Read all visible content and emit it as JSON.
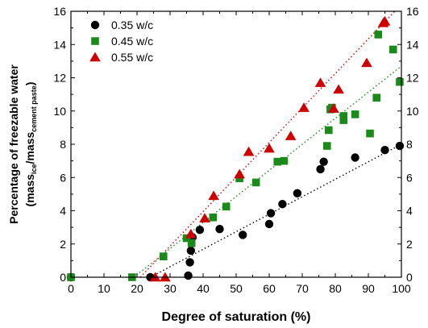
{
  "chart_data": {
    "type": "scatter",
    "xlabel": "Degree of saturation (%)",
    "ylabel": {
      "line1": "Percentage of freezable water",
      "line2_open": "(mass",
      "line2_sub1": "ice",
      "line2_mid": "/mass",
      "line2_sub2": "cement paste",
      "line2_close": ")"
    },
    "xlim": [
      0,
      100
    ],
    "ylim": [
      0,
      16
    ],
    "xticks": [
      0,
      10,
      20,
      30,
      40,
      50,
      60,
      70,
      80,
      90,
      100
    ],
    "yticks": [
      0,
      2,
      4,
      6,
      8,
      10,
      12,
      14,
      16
    ],
    "legend_position": "top-left",
    "series": [
      {
        "name": "0.35 w/c",
        "marker": "circle",
        "color": "#000000",
        "points": [
          [
            0,
            0
          ],
          [
            24,
            0
          ],
          [
            35.5,
            0.1
          ],
          [
            36,
            0.9
          ],
          [
            36.3,
            1.6
          ],
          [
            36.8,
            2.4
          ],
          [
            39,
            2.85
          ],
          [
            45,
            2.9
          ],
          [
            52,
            2.55
          ],
          [
            60,
            3.2
          ],
          [
            60.5,
            3.85
          ],
          [
            64,
            4.4
          ],
          [
            68.5,
            5.05
          ],
          [
            75.5,
            6.5
          ],
          [
            76.5,
            6.95
          ],
          [
            86,
            7.2
          ],
          [
            95,
            7.65
          ],
          [
            99.5,
            7.9
          ]
        ],
        "trend": [
          [
            24,
            0
          ],
          [
            100,
            8.0
          ]
        ]
      },
      {
        "name": "0.45 w/c",
        "marker": "square",
        "color": "#1a8a1a",
        "points": [
          [
            0,
            0
          ],
          [
            18.5,
            0
          ],
          [
            28,
            1.25
          ],
          [
            35,
            2.35
          ],
          [
            36.5,
            2.05
          ],
          [
            43,
            3.6
          ],
          [
            47,
            4.25
          ],
          [
            51,
            5.95
          ],
          [
            56,
            5.7
          ],
          [
            62.5,
            6.95
          ],
          [
            64.5,
            7.0
          ],
          [
            77.5,
            7.9
          ],
          [
            78,
            8.85
          ],
          [
            78.5,
            10.1
          ],
          [
            79,
            10.2
          ],
          [
            82.5,
            9.45
          ],
          [
            82.5,
            9.7
          ],
          [
            86,
            9.8
          ],
          [
            90.5,
            8.65
          ],
          [
            92.5,
            10.8
          ],
          [
            93,
            14.6
          ],
          [
            97.5,
            13.7
          ],
          [
            99.5,
            11.75
          ]
        ],
        "trend": [
          [
            19,
            0
          ],
          [
            100,
            12.7
          ]
        ]
      },
      {
        "name": "0.55 w/c",
        "marker": "triangle",
        "color": "#cc0000",
        "points": [
          [
            25.5,
            0
          ],
          [
            28.5,
            0
          ],
          [
            36.3,
            2.6
          ],
          [
            40.5,
            3.55
          ],
          [
            43.2,
            4.9
          ],
          [
            51,
            6.2
          ],
          [
            53.8,
            7.55
          ],
          [
            60,
            7.75
          ],
          [
            66.5,
            8.5
          ],
          [
            70.5,
            10.2
          ],
          [
            75.5,
            11.7
          ],
          [
            79.5,
            10.15
          ],
          [
            81,
            11.3
          ],
          [
            89.5,
            12.9
          ],
          [
            94.5,
            15.3
          ],
          [
            95,
            15.4
          ]
        ],
        "trend": [
          [
            21,
            0
          ],
          [
            98,
            16.0
          ]
        ]
      }
    ]
  }
}
